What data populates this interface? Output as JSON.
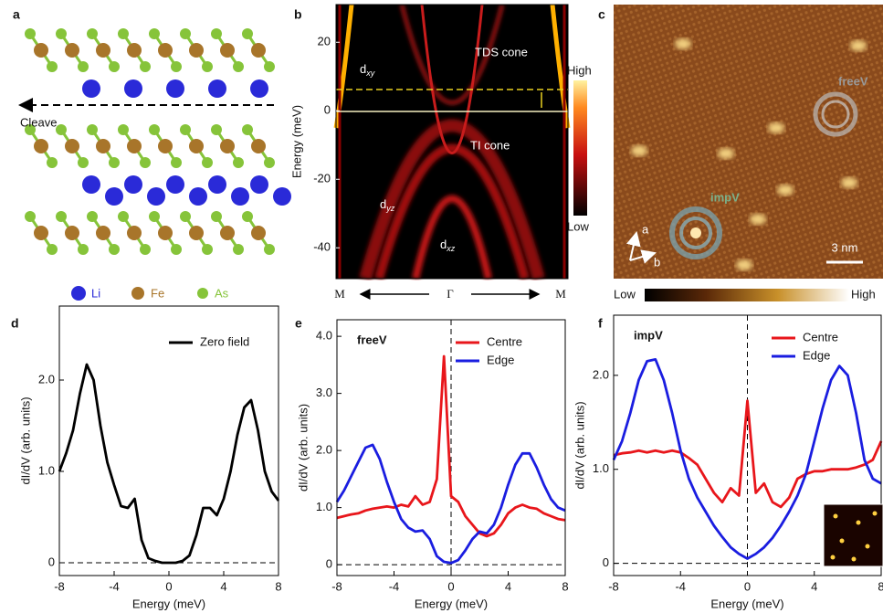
{
  "panel_a": {
    "label": "a",
    "cleave": "Cleave",
    "legend": [
      "Li",
      "Fe",
      "As"
    ]
  },
  "panel_b": {
    "label": "b",
    "ylabel": "Energy (meV)",
    "ylim": [
      -49,
      31
    ],
    "yticks": [
      -40,
      -20,
      0,
      20
    ],
    "x_labels": [
      "M",
      "Γ",
      "M"
    ],
    "annotations": [
      "TDS cone",
      "TI cone",
      "dxy",
      "dyz",
      "dxz"
    ],
    "colorbar": [
      "High",
      "Low"
    ]
  },
  "panel_c": {
    "label": "c",
    "annotations": [
      "freeV",
      "impV"
    ],
    "axes": [
      "a",
      "b"
    ],
    "scale_bar": "3 nm",
    "colorbar": [
      "Low",
      "High"
    ]
  },
  "chart_data": [
    {
      "type": "line",
      "panel": "d",
      "xlabel": "Energy (meV)",
      "ylabel": "dI/dV (arb. units)",
      "xlim": [
        -8,
        8
      ],
      "xticks": [
        -8,
        -4,
        0,
        4,
        8
      ],
      "ylim": [
        -0.14,
        2.81
      ],
      "yticks": [
        0,
        {
          "value": 1,
          "label": "1.0"
        },
        {
          "value": 2,
          "label": "2.0"
        }
      ],
      "hlines": [
        0
      ],
      "vlines": [],
      "legend": "upper right",
      "x": [
        -8,
        -7.5,
        -7,
        -6.5,
        -6,
        -5.5,
        -5,
        -4.5,
        -4,
        -3.5,
        -3,
        -2.5,
        -2,
        -1.5,
        -1,
        -0.5,
        0,
        0.5,
        1,
        1.5,
        2,
        2.5,
        3,
        3.5,
        4,
        4.5,
        5,
        5.5,
        6,
        6.5,
        7,
        7.5,
        8
      ],
      "series": [
        {
          "name": "Zero field",
          "color": "#000000",
          "values": [
            1.0,
            1.2,
            1.45,
            1.85,
            2.17,
            2.0,
            1.5,
            1.1,
            0.85,
            0.62,
            0.6,
            0.7,
            0.25,
            0.05,
            0.02,
            0.0,
            0.0,
            0.0,
            0.02,
            0.08,
            0.3,
            0.6,
            0.6,
            0.52,
            0.7,
            1.0,
            1.4,
            1.7,
            1.78,
            1.45,
            1.0,
            0.78,
            0.68
          ]
        }
      ]
    },
    {
      "type": "line",
      "panel": "e",
      "annotation": "freeV",
      "xlabel": "Energy (meV)",
      "ylabel": "dI/dV (arb. units)",
      "xlim": [
        -8,
        8
      ],
      "xticks": [
        -8,
        -4,
        0,
        4,
        8
      ],
      "ylim": [
        -0.19,
        4.29
      ],
      "yticks": [
        0,
        {
          "value": 1,
          "label": "1.0"
        },
        {
          "value": 2,
          "label": "2.0"
        },
        {
          "value": 3,
          "label": "3.0"
        },
        {
          "value": 4,
          "label": "4.0"
        }
      ],
      "hlines": [
        0
      ],
      "vlines": [
        0
      ],
      "legend": "upper right",
      "x": [
        -8,
        -7.5,
        -7,
        -6.5,
        -6,
        -5.5,
        -5,
        -4.5,
        -4,
        -3.5,
        -3,
        -2.5,
        -2,
        -1.5,
        -1,
        -0.5,
        0,
        0.5,
        1,
        1.5,
        2,
        2.5,
        3,
        3.5,
        4,
        4.5,
        5,
        5.5,
        6,
        6.5,
        7,
        7.5,
        8
      ],
      "series": [
        {
          "name": "Centre",
          "color": "#e8161b",
          "values": [
            0.82,
            0.85,
            0.88,
            0.9,
            0.95,
            0.98,
            1.0,
            1.02,
            1.0,
            1.05,
            1.02,
            1.2,
            1.05,
            1.1,
            1.5,
            3.65,
            1.2,
            1.1,
            0.85,
            0.7,
            0.55,
            0.5,
            0.55,
            0.7,
            0.9,
            1.0,
            1.05,
            1.0,
            0.98,
            0.9,
            0.85,
            0.8,
            0.78
          ]
        },
        {
          "name": "Edge",
          "color": "#1a1de0",
          "values": [
            1.1,
            1.3,
            1.55,
            1.8,
            2.05,
            2.1,
            1.85,
            1.45,
            1.1,
            0.8,
            0.65,
            0.58,
            0.6,
            0.45,
            0.15,
            0.05,
            0.03,
            0.08,
            0.25,
            0.45,
            0.58,
            0.55,
            0.7,
            1.0,
            1.4,
            1.75,
            1.95,
            1.95,
            1.7,
            1.4,
            1.15,
            1.0,
            0.95
          ]
        }
      ]
    },
    {
      "type": "line",
      "panel": "f",
      "annotation": "impV",
      "xlabel": "Energy (meV)",
      "ylabel": "dI/dV (arb. units)",
      "xlim": [
        -8,
        8
      ],
      "xticks": [
        -8,
        -4,
        0,
        4,
        8
      ],
      "ylim": [
        -0.13,
        2.64
      ],
      "yticks": [
        0,
        {
          "value": 1,
          "label": "1.0"
        },
        {
          "value": 2,
          "label": "2.0"
        }
      ],
      "hlines": [
        0
      ],
      "vlines": [
        0
      ],
      "legend": "upper right",
      "x": [
        -8,
        -7.5,
        -7,
        -6.5,
        -6,
        -5.5,
        -5,
        -4.5,
        -4,
        -3.5,
        -3,
        -2.5,
        -2,
        -1.5,
        -1,
        -0.5,
        0,
        0.5,
        1,
        1.5,
        2,
        2.5,
        3,
        3.5,
        4,
        4.5,
        5,
        5.5,
        6,
        6.5,
        7,
        7.5,
        8
      ],
      "series": [
        {
          "name": "Centre",
          "color": "#e8161b",
          "values": [
            1.15,
            1.17,
            1.18,
            1.2,
            1.18,
            1.2,
            1.18,
            1.2,
            1.18,
            1.12,
            1.05,
            0.9,
            0.75,
            0.65,
            0.8,
            0.72,
            1.73,
            0.75,
            0.85,
            0.65,
            0.6,
            0.7,
            0.9,
            0.95,
            0.98,
            0.98,
            1.0,
            1.0,
            1.0,
            1.02,
            1.05,
            1.1,
            1.3
          ]
        },
        {
          "name": "Edge",
          "color": "#1a1de0",
          "values": [
            1.1,
            1.3,
            1.6,
            1.95,
            2.15,
            2.17,
            1.95,
            1.6,
            1.2,
            0.9,
            0.7,
            0.55,
            0.4,
            0.28,
            0.17,
            0.1,
            0.05,
            0.1,
            0.17,
            0.27,
            0.4,
            0.55,
            0.72,
            0.95,
            1.3,
            1.65,
            1.95,
            2.1,
            2.0,
            1.6,
            1.1,
            0.9,
            0.85
          ]
        }
      ]
    }
  ]
}
